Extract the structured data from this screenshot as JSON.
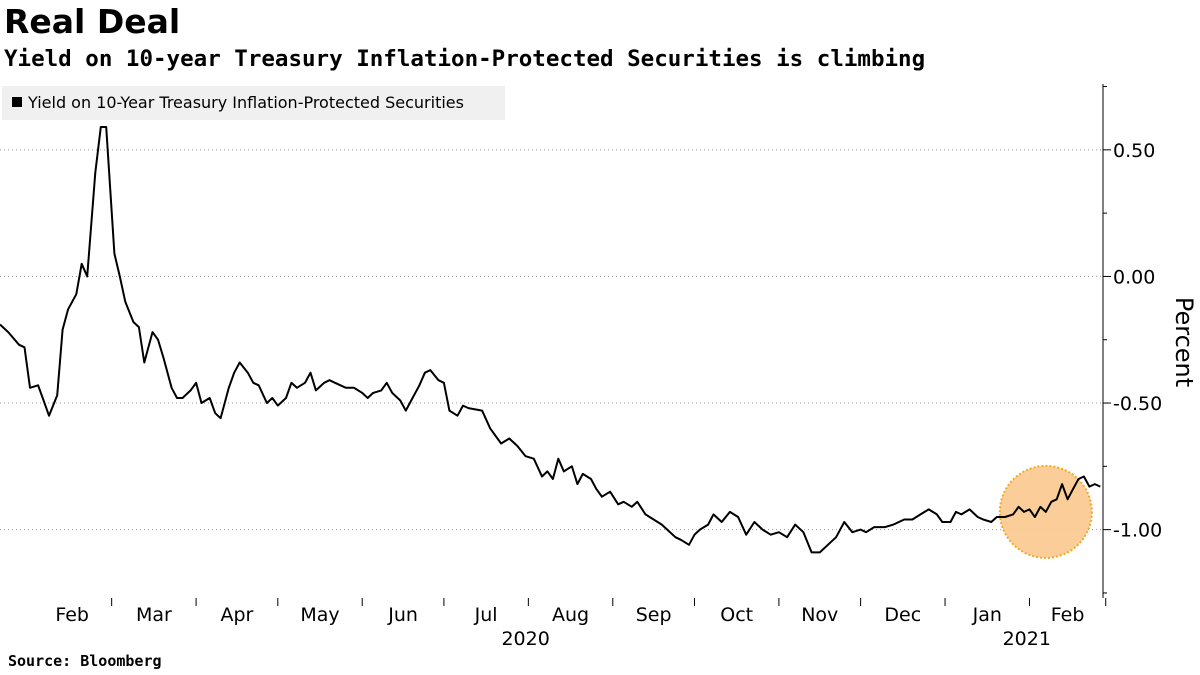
{
  "header": {
    "title": "Real Deal",
    "subtitle": "Yield on 10-year Treasury Inflation-Protected Securities is climbing"
  },
  "footer": {
    "source": "Source: Bloomberg"
  },
  "colors": {
    "line": "#000000",
    "legend_bg": "#f0f0f0",
    "highlight_fill": "#fbc98e",
    "highlight_stroke": "#f5a623"
  },
  "chart_data": {
    "type": "line",
    "title": "Real Deal",
    "subtitle": "Yield on 10-year Treasury Inflation-Protected Securities is climbing",
    "ylabel": "Percent",
    "xlabel": "",
    "y_axis_position": "right",
    "ylim": [
      -1.27,
      0.76
    ],
    "y_ticks": [
      0.5,
      0.0,
      -0.5,
      -1.0
    ],
    "y_tick_labels": [
      "0.50",
      "0.00",
      "-0.50",
      "-1.00"
    ],
    "grid": "horizontal-dotted",
    "legend_position": "top-left",
    "x_range": [
      "2020-01-20",
      "2021-02-28"
    ],
    "x_months": [
      {
        "label": "Feb",
        "start": "2020-02-01",
        "end": "2020-03-01"
      },
      {
        "label": "Mar",
        "start": "2020-03-01",
        "end": "2020-04-01"
      },
      {
        "label": "Apr",
        "start": "2020-04-01",
        "end": "2020-05-01"
      },
      {
        "label": "May",
        "start": "2020-05-01",
        "end": "2020-06-01"
      },
      {
        "label": "Jun",
        "start": "2020-06-01",
        "end": "2020-07-01"
      },
      {
        "label": "Jul",
        "start": "2020-07-01",
        "end": "2020-08-01"
      },
      {
        "label": "Aug",
        "start": "2020-08-01",
        "end": "2020-09-01"
      },
      {
        "label": "Sep",
        "start": "2020-09-01",
        "end": "2020-10-01"
      },
      {
        "label": "Oct",
        "start": "2020-10-01",
        "end": "2020-11-01"
      },
      {
        "label": "Nov",
        "start": "2020-11-01",
        "end": "2020-12-01"
      },
      {
        "label": "Dec",
        "start": "2020-12-01",
        "end": "2021-01-01"
      },
      {
        "label": "Jan",
        "start": "2021-01-01",
        "end": "2021-02-01"
      },
      {
        "label": "Feb",
        "start": "2021-02-01",
        "end": "2021-03-01"
      }
    ],
    "x_years": [
      {
        "label": "2020",
        "at": "2020-07-31"
      },
      {
        "label": "2021",
        "at": "2021-01-31"
      }
    ],
    "highlight": {
      "center": [
        "2021-02-07",
        -0.93
      ],
      "note": "circled recent climb"
    },
    "series": [
      {
        "name": "Yield on 10-Year Treasury Inflation-Protected Securities",
        "points": [
          [
            "2020-01-20",
            -0.19
          ],
          [
            "2020-01-23",
            -0.22
          ],
          [
            "2020-01-27",
            -0.27
          ],
          [
            "2020-01-29",
            -0.28
          ],
          [
            "2020-01-31",
            -0.44
          ],
          [
            "2020-02-03",
            -0.43
          ],
          [
            "2020-02-05",
            -0.49
          ],
          [
            "2020-02-07",
            -0.55
          ],
          [
            "2020-02-10",
            -0.47
          ],
          [
            "2020-02-12",
            -0.21
          ],
          [
            "2020-02-14",
            -0.13
          ],
          [
            "2020-02-17",
            -0.07
          ],
          [
            "2020-02-19",
            0.05
          ],
          [
            "2020-02-21",
            0.0
          ],
          [
            "2020-02-24",
            0.41
          ],
          [
            "2020-02-26",
            0.59
          ],
          [
            "2020-02-28",
            0.59
          ],
          [
            "2020-03-02",
            0.09
          ],
          [
            "2020-03-04",
            0.0
          ],
          [
            "2020-03-06",
            -0.1
          ],
          [
            "2020-03-09",
            -0.18
          ],
          [
            "2020-03-11",
            -0.2
          ],
          [
            "2020-03-13",
            -0.34
          ],
          [
            "2020-03-16",
            -0.22
          ],
          [
            "2020-03-18",
            -0.25
          ],
          [
            "2020-03-20",
            -0.32
          ],
          [
            "2020-03-23",
            -0.44
          ],
          [
            "2020-03-25",
            -0.48
          ],
          [
            "2020-03-27",
            -0.48
          ],
          [
            "2020-03-30",
            -0.45
          ],
          [
            "2020-04-01",
            -0.42
          ],
          [
            "2020-04-03",
            -0.5
          ],
          [
            "2020-04-06",
            -0.48
          ],
          [
            "2020-04-08",
            -0.54
          ],
          [
            "2020-04-10",
            -0.56
          ],
          [
            "2020-04-13",
            -0.44
          ],
          [
            "2020-04-15",
            -0.38
          ],
          [
            "2020-04-17",
            -0.34
          ],
          [
            "2020-04-20",
            -0.38
          ],
          [
            "2020-04-22",
            -0.42
          ],
          [
            "2020-04-24",
            -0.43
          ],
          [
            "2020-04-27",
            -0.5
          ],
          [
            "2020-04-29",
            -0.48
          ],
          [
            "2020-05-01",
            -0.51
          ],
          [
            "2020-05-04",
            -0.48
          ],
          [
            "2020-05-06",
            -0.42
          ],
          [
            "2020-05-08",
            -0.44
          ],
          [
            "2020-05-11",
            -0.42
          ],
          [
            "2020-05-13",
            -0.38
          ],
          [
            "2020-05-15",
            -0.45
          ],
          [
            "2020-05-18",
            -0.42
          ],
          [
            "2020-05-20",
            -0.41
          ],
          [
            "2020-05-22",
            -0.42
          ],
          [
            "2020-05-26",
            -0.44
          ],
          [
            "2020-05-29",
            -0.44
          ],
          [
            "2020-06-01",
            -0.46
          ],
          [
            "2020-06-03",
            -0.48
          ],
          [
            "2020-06-05",
            -0.46
          ],
          [
            "2020-06-08",
            -0.45
          ],
          [
            "2020-06-10",
            -0.42
          ],
          [
            "2020-06-12",
            -0.46
          ],
          [
            "2020-06-15",
            -0.49
          ],
          [
            "2020-06-17",
            -0.53
          ],
          [
            "2020-06-19",
            -0.49
          ],
          [
            "2020-06-22",
            -0.43
          ],
          [
            "2020-06-24",
            -0.38
          ],
          [
            "2020-06-26",
            -0.37
          ],
          [
            "2020-06-29",
            -0.41
          ],
          [
            "2020-07-01",
            -0.42
          ],
          [
            "2020-07-03",
            -0.53
          ],
          [
            "2020-07-06",
            -0.55
          ],
          [
            "2020-07-08",
            -0.51
          ],
          [
            "2020-07-10",
            -0.52
          ],
          [
            "2020-07-15",
            -0.53
          ],
          [
            "2020-07-18",
            -0.6
          ],
          [
            "2020-07-22",
            -0.66
          ],
          [
            "2020-07-25",
            -0.64
          ],
          [
            "2020-07-28",
            -0.67
          ],
          [
            "2020-07-31",
            -0.71
          ],
          [
            "2020-08-03",
            -0.72
          ],
          [
            "2020-08-06",
            -0.79
          ],
          [
            "2020-08-08",
            -0.77
          ],
          [
            "2020-08-10",
            -0.8
          ],
          [
            "2020-08-12",
            -0.72
          ],
          [
            "2020-08-14",
            -0.77
          ],
          [
            "2020-08-17",
            -0.75
          ],
          [
            "2020-08-19",
            -0.82
          ],
          [
            "2020-08-21",
            -0.78
          ],
          [
            "2020-08-24",
            -0.8
          ],
          [
            "2020-08-26",
            -0.84
          ],
          [
            "2020-08-28",
            -0.87
          ],
          [
            "2020-08-31",
            -0.85
          ],
          [
            "2020-09-03",
            -0.9
          ],
          [
            "2020-09-05",
            -0.89
          ],
          [
            "2020-09-08",
            -0.91
          ],
          [
            "2020-09-10",
            -0.89
          ],
          [
            "2020-09-13",
            -0.94
          ],
          [
            "2020-09-16",
            -0.96
          ],
          [
            "2020-09-19",
            -0.98
          ],
          [
            "2020-09-21",
            -1.0
          ],
          [
            "2020-09-24",
            -1.03
          ],
          [
            "2020-09-26",
            -1.04
          ],
          [
            "2020-09-29",
            -1.06
          ],
          [
            "2020-10-01",
            -1.02
          ],
          [
            "2020-10-03",
            -1.0
          ],
          [
            "2020-10-06",
            -0.98
          ],
          [
            "2020-10-08",
            -0.94
          ],
          [
            "2020-10-11",
            -0.97
          ],
          [
            "2020-10-14",
            -0.93
          ],
          [
            "2020-10-17",
            -0.95
          ],
          [
            "2020-10-20",
            -1.02
          ],
          [
            "2020-10-23",
            -0.97
          ],
          [
            "2020-10-26",
            -1.0
          ],
          [
            "2020-10-29",
            -1.02
          ],
          [
            "2020-11-01",
            -1.01
          ],
          [
            "2020-11-04",
            -1.03
          ],
          [
            "2020-11-07",
            -0.98
          ],
          [
            "2020-11-10",
            -1.01
          ],
          [
            "2020-11-13",
            -1.09
          ],
          [
            "2020-11-16",
            -1.09
          ],
          [
            "2020-11-19",
            -1.06
          ],
          [
            "2020-11-22",
            -1.03
          ],
          [
            "2020-11-25",
            -0.97
          ],
          [
            "2020-11-28",
            -1.01
          ],
          [
            "2020-12-01",
            -1.0
          ],
          [
            "2020-12-03",
            -1.01
          ],
          [
            "2020-12-06",
            -0.99
          ],
          [
            "2020-12-10",
            -0.99
          ],
          [
            "2020-12-13",
            -0.98
          ],
          [
            "2020-12-17",
            -0.96
          ],
          [
            "2020-12-20",
            -0.96
          ],
          [
            "2020-12-23",
            -0.94
          ],
          [
            "2020-12-26",
            -0.92
          ],
          [
            "2020-12-29",
            -0.94
          ],
          [
            "2020-12-31",
            -0.97
          ],
          [
            "2021-01-03",
            -0.97
          ],
          [
            "2021-01-05",
            -0.93
          ],
          [
            "2021-01-07",
            -0.94
          ],
          [
            "2021-01-10",
            -0.92
          ],
          [
            "2021-01-13",
            -0.95
          ],
          [
            "2021-01-15",
            -0.96
          ],
          [
            "2021-01-18",
            -0.97
          ],
          [
            "2021-01-20",
            -0.95
          ],
          [
            "2021-01-23",
            -0.95
          ],
          [
            "2021-01-26",
            -0.94
          ],
          [
            "2021-01-28",
            -0.91
          ],
          [
            "2021-01-30",
            -0.93
          ],
          [
            "2021-02-01",
            -0.92
          ],
          [
            "2021-02-03",
            -0.95
          ],
          [
            "2021-02-05",
            -0.91
          ],
          [
            "2021-02-07",
            -0.93
          ],
          [
            "2021-02-09",
            -0.89
          ],
          [
            "2021-02-11",
            -0.88
          ],
          [
            "2021-02-13",
            -0.82
          ],
          [
            "2021-02-15",
            -0.88
          ],
          [
            "2021-02-17",
            -0.84
          ],
          [
            "2021-02-19",
            -0.8
          ],
          [
            "2021-02-21",
            -0.79
          ],
          [
            "2021-02-23",
            -0.83
          ],
          [
            "2021-02-25",
            -0.82
          ],
          [
            "2021-02-27",
            -0.83
          ]
        ]
      }
    ]
  }
}
